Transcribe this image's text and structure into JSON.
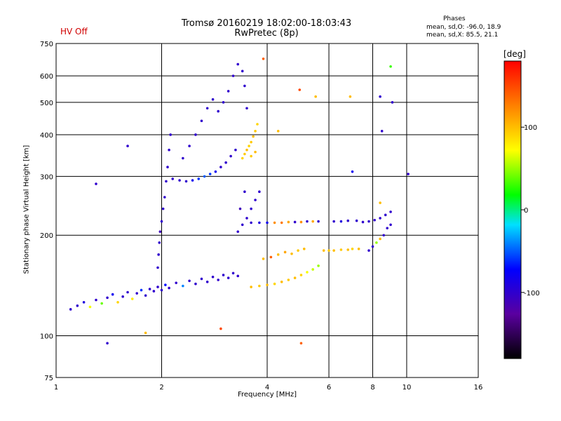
{
  "chart_data": {
    "type": "scatter",
    "title": "Tromsø 20160219 18:02:00-18:03:43",
    "subtitle": "RwPretec (8p)",
    "status_label": "HV Off",
    "phases_box": {
      "title": "Phases",
      "line_o": "mean, sd,O: -96.0, 18.9",
      "line_x": "mean, sd,X:  85.5, 21.1"
    },
    "xlabel": "Frequency [MHz]",
    "ylabel": "Stationary phase Virtual Height [km]",
    "xscale": "log",
    "yscale": "log",
    "xlim": [
      1,
      16
    ],
    "ylim": [
      75,
      750
    ],
    "x_ticks": [
      1,
      2,
      4,
      6,
      8,
      10,
      16
    ],
    "y_ticks": [
      75,
      100,
      200,
      300,
      400,
      500,
      600,
      750
    ],
    "grid": true,
    "colorbar": {
      "label": "[deg]",
      "ticks": [
        100,
        0,
        -100
      ],
      "range": [
        -180,
        180
      ]
    },
    "series": [
      {
        "x": 1.1,
        "y": 120,
        "p": -100
      },
      {
        "x": 1.15,
        "y": 123,
        "p": -100
      },
      {
        "x": 1.2,
        "y": 126,
        "p": -90
      },
      {
        "x": 1.25,
        "y": 122,
        "p": 70
      },
      {
        "x": 1.3,
        "y": 128,
        "p": -100
      },
      {
        "x": 1.35,
        "y": 125,
        "p": 40
      },
      {
        "x": 1.4,
        "y": 130,
        "p": -100
      },
      {
        "x": 1.45,
        "y": 133,
        "p": -80
      },
      {
        "x": 1.5,
        "y": 126,
        "p": 90
      },
      {
        "x": 1.55,
        "y": 131,
        "p": -100
      },
      {
        "x": 1.6,
        "y": 135,
        "p": -100
      },
      {
        "x": 1.65,
        "y": 129,
        "p": 80
      },
      {
        "x": 1.7,
        "y": 134,
        "p": -100
      },
      {
        "x": 1.75,
        "y": 137,
        "p": -60
      },
      {
        "x": 1.8,
        "y": 132,
        "p": -100
      },
      {
        "x": 1.85,
        "y": 138,
        "p": -100
      },
      {
        "x": 1.9,
        "y": 136,
        "p": -100
      },
      {
        "x": 1.95,
        "y": 140,
        "p": -100
      },
      {
        "x": 2.0,
        "y": 137,
        "p": -100
      },
      {
        "x": 2.05,
        "y": 142,
        "p": -70
      },
      {
        "x": 2.1,
        "y": 139,
        "p": -100
      },
      {
        "x": 2.2,
        "y": 144,
        "p": -100
      },
      {
        "x": 2.3,
        "y": 141,
        "p": -40
      },
      {
        "x": 2.4,
        "y": 146,
        "p": -100
      },
      {
        "x": 2.5,
        "y": 143,
        "p": -100
      },
      {
        "x": 2.6,
        "y": 148,
        "p": -100
      },
      {
        "x": 2.7,
        "y": 145,
        "p": -100
      },
      {
        "x": 2.8,
        "y": 150,
        "p": -100
      },
      {
        "x": 2.9,
        "y": 147,
        "p": -100
      },
      {
        "x": 3.0,
        "y": 152,
        "p": -100
      },
      {
        "x": 3.1,
        "y": 149,
        "p": -100
      },
      {
        "x": 3.2,
        "y": 154,
        "p": -100
      },
      {
        "x": 3.3,
        "y": 151,
        "p": -100
      },
      {
        "x": 1.95,
        "y": 160,
        "p": -100
      },
      {
        "x": 1.96,
        "y": 175,
        "p": -100
      },
      {
        "x": 1.97,
        "y": 190,
        "p": -100
      },
      {
        "x": 1.98,
        "y": 205,
        "p": -110
      },
      {
        "x": 2.0,
        "y": 220,
        "p": -100
      },
      {
        "x": 2.02,
        "y": 240,
        "p": -100
      },
      {
        "x": 2.04,
        "y": 260,
        "p": -100
      },
      {
        "x": 2.06,
        "y": 290,
        "p": -100
      },
      {
        "x": 2.08,
        "y": 320,
        "p": -100
      },
      {
        "x": 2.1,
        "y": 360,
        "p": -100
      },
      {
        "x": 2.12,
        "y": 400,
        "p": -100
      },
      {
        "x": 2.15,
        "y": 295,
        "p": -100
      },
      {
        "x": 2.25,
        "y": 292,
        "p": -100
      },
      {
        "x": 2.35,
        "y": 290,
        "p": -100
      },
      {
        "x": 2.45,
        "y": 292,
        "p": -80
      },
      {
        "x": 2.55,
        "y": 295,
        "p": -60
      },
      {
        "x": 2.65,
        "y": 300,
        "p": -50
      },
      {
        "x": 2.75,
        "y": 305,
        "p": -60
      },
      {
        "x": 2.85,
        "y": 310,
        "p": -80
      },
      {
        "x": 2.95,
        "y": 320,
        "p": -100
      },
      {
        "x": 3.05,
        "y": 330,
        "p": -100
      },
      {
        "x": 3.15,
        "y": 345,
        "p": -100
      },
      {
        "x": 3.25,
        "y": 360,
        "p": -100
      },
      {
        "x": 2.3,
        "y": 340,
        "p": -100
      },
      {
        "x": 2.4,
        "y": 370,
        "p": -100
      },
      {
        "x": 2.5,
        "y": 400,
        "p": -100
      },
      {
        "x": 2.6,
        "y": 440,
        "p": -100
      },
      {
        "x": 2.7,
        "y": 480,
        "p": -100
      },
      {
        "x": 2.8,
        "y": 510,
        "p": -100
      },
      {
        "x": 2.9,
        "y": 470,
        "p": -100
      },
      {
        "x": 3.0,
        "y": 500,
        "p": -100
      },
      {
        "x": 3.1,
        "y": 540,
        "p": -100
      },
      {
        "x": 3.2,
        "y": 600,
        "p": -100
      },
      {
        "x": 3.3,
        "y": 650,
        "p": -100
      },
      {
        "x": 3.4,
        "y": 620,
        "p": -100
      },
      {
        "x": 3.45,
        "y": 560,
        "p": -100
      },
      {
        "x": 3.5,
        "y": 480,
        "p": -100
      },
      {
        "x": 3.4,
        "y": 340,
        "p": 90
      },
      {
        "x": 3.45,
        "y": 350,
        "p": 95
      },
      {
        "x": 3.5,
        "y": 360,
        "p": 100
      },
      {
        "x": 3.55,
        "y": 370,
        "p": 90
      },
      {
        "x": 3.6,
        "y": 380,
        "p": 95
      },
      {
        "x": 3.65,
        "y": 395,
        "p": 100
      },
      {
        "x": 3.7,
        "y": 410,
        "p": 95
      },
      {
        "x": 3.75,
        "y": 430,
        "p": 90
      },
      {
        "x": 3.6,
        "y": 345,
        "p": 95
      },
      {
        "x": 3.7,
        "y": 355,
        "p": 100
      },
      {
        "x": 3.3,
        "y": 205,
        "p": -100
      },
      {
        "x": 3.4,
        "y": 215,
        "p": -100
      },
      {
        "x": 3.5,
        "y": 225,
        "p": -100
      },
      {
        "x": 3.6,
        "y": 240,
        "p": -100
      },
      {
        "x": 3.7,
        "y": 255,
        "p": -100
      },
      {
        "x": 3.8,
        "y": 270,
        "p": -100
      },
      {
        "x": 3.35,
        "y": 240,
        "p": -110
      },
      {
        "x": 3.45,
        "y": 270,
        "p": -100
      },
      {
        "x": 3.6,
        "y": 218,
        "p": -100
      },
      {
        "x": 3.8,
        "y": 218,
        "p": -90
      },
      {
        "x": 4.0,
        "y": 218,
        "p": -80
      },
      {
        "x": 4.2,
        "y": 218,
        "p": 120
      },
      {
        "x": 4.4,
        "y": 218,
        "p": 130
      },
      {
        "x": 4.6,
        "y": 219,
        "p": 110
      },
      {
        "x": 4.8,
        "y": 219,
        "p": -100
      },
      {
        "x": 5.0,
        "y": 219,
        "p": 120
      },
      {
        "x": 5.2,
        "y": 220,
        "p": -100
      },
      {
        "x": 5.4,
        "y": 220,
        "p": 110
      },
      {
        "x": 5.6,
        "y": 220,
        "p": -100
      },
      {
        "x": 3.6,
        "y": 140,
        "p": 100
      },
      {
        "x": 3.8,
        "y": 141,
        "p": 95
      },
      {
        "x": 4.0,
        "y": 142,
        "p": 100
      },
      {
        "x": 4.2,
        "y": 143,
        "p": 90
      },
      {
        "x": 4.4,
        "y": 145,
        "p": 100
      },
      {
        "x": 4.6,
        "y": 147,
        "p": 95
      },
      {
        "x": 4.8,
        "y": 149,
        "p": 100
      },
      {
        "x": 5.0,
        "y": 152,
        "p": 90
      },
      {
        "x": 5.2,
        "y": 155,
        "p": 70
      },
      {
        "x": 5.4,
        "y": 158,
        "p": 60
      },
      {
        "x": 5.6,
        "y": 162,
        "p": 50
      },
      {
        "x": 3.9,
        "y": 170,
        "p": 100
      },
      {
        "x": 4.1,
        "y": 172,
        "p": 140
      },
      {
        "x": 4.3,
        "y": 175,
        "p": 100
      },
      {
        "x": 4.5,
        "y": 178,
        "p": 110
      },
      {
        "x": 4.7,
        "y": 176,
        "p": 100
      },
      {
        "x": 4.9,
        "y": 180,
        "p": 95
      },
      {
        "x": 5.1,
        "y": 182,
        "p": 100
      },
      {
        "x": 5.8,
        "y": 180,
        "p": 100
      },
      {
        "x": 6.0,
        "y": 180,
        "p": 95
      },
      {
        "x": 6.2,
        "y": 180,
        "p": 100
      },
      {
        "x": 6.5,
        "y": 181,
        "p": 95
      },
      {
        "x": 6.8,
        "y": 181,
        "p": 100
      },
      {
        "x": 7.0,
        "y": 182,
        "p": 90
      },
      {
        "x": 7.3,
        "y": 182,
        "p": 100
      },
      {
        "x": 6.2,
        "y": 220,
        "p": -100
      },
      {
        "x": 6.5,
        "y": 220,
        "p": -90
      },
      {
        "x": 6.8,
        "y": 221,
        "p": -100
      },
      {
        "x": 7.2,
        "y": 221,
        "p": -100
      },
      {
        "x": 7.5,
        "y": 219,
        "p": -100
      },
      {
        "x": 7.8,
        "y": 220,
        "p": -100
      },
      {
        "x": 8.1,
        "y": 222,
        "p": -100
      },
      {
        "x": 8.4,
        "y": 225,
        "p": -100
      },
      {
        "x": 8.7,
        "y": 230,
        "p": -100
      },
      {
        "x": 9.0,
        "y": 235,
        "p": -100
      },
      {
        "x": 7.8,
        "y": 180,
        "p": -100
      },
      {
        "x": 8.0,
        "y": 185,
        "p": -100
      },
      {
        "x": 8.2,
        "y": 190,
        "p": 50
      },
      {
        "x": 8.4,
        "y": 195,
        "p": 100
      },
      {
        "x": 8.6,
        "y": 200,
        "p": -100
      },
      {
        "x": 8.8,
        "y": 210,
        "p": -100
      },
      {
        "x": 9.0,
        "y": 215,
        "p": -100
      },
      {
        "x": 1.4,
        "y": 95,
        "p": -100
      },
      {
        "x": 1.8,
        "y": 102,
        "p": 100
      },
      {
        "x": 1.3,
        "y": 285,
        "p": -100
      },
      {
        "x": 1.6,
        "y": 370,
        "p": -100
      },
      {
        "x": 2.95,
        "y": 105,
        "p": 150
      },
      {
        "x": 3.9,
        "y": 675,
        "p": 140
      },
      {
        "x": 4.95,
        "y": 545,
        "p": 150
      },
      {
        "x": 5.0,
        "y": 95,
        "p": 140
      },
      {
        "x": 6.9,
        "y": 520,
        "p": 100
      },
      {
        "x": 7.0,
        "y": 310,
        "p": -80
      },
      {
        "x": 8.4,
        "y": 520,
        "p": -100
      },
      {
        "x": 8.5,
        "y": 410,
        "p": -100
      },
      {
        "x": 9.0,
        "y": 640,
        "p": 30
      },
      {
        "x": 8.4,
        "y": 250,
        "p": 100
      },
      {
        "x": 10.1,
        "y": 305,
        "p": -100
      },
      {
        "x": 5.5,
        "y": 520,
        "p": 100
      },
      {
        "x": 4.3,
        "y": 410,
        "p": 100
      },
      {
        "x": 9.1,
        "y": 500,
        "p": -100
      }
    ]
  }
}
